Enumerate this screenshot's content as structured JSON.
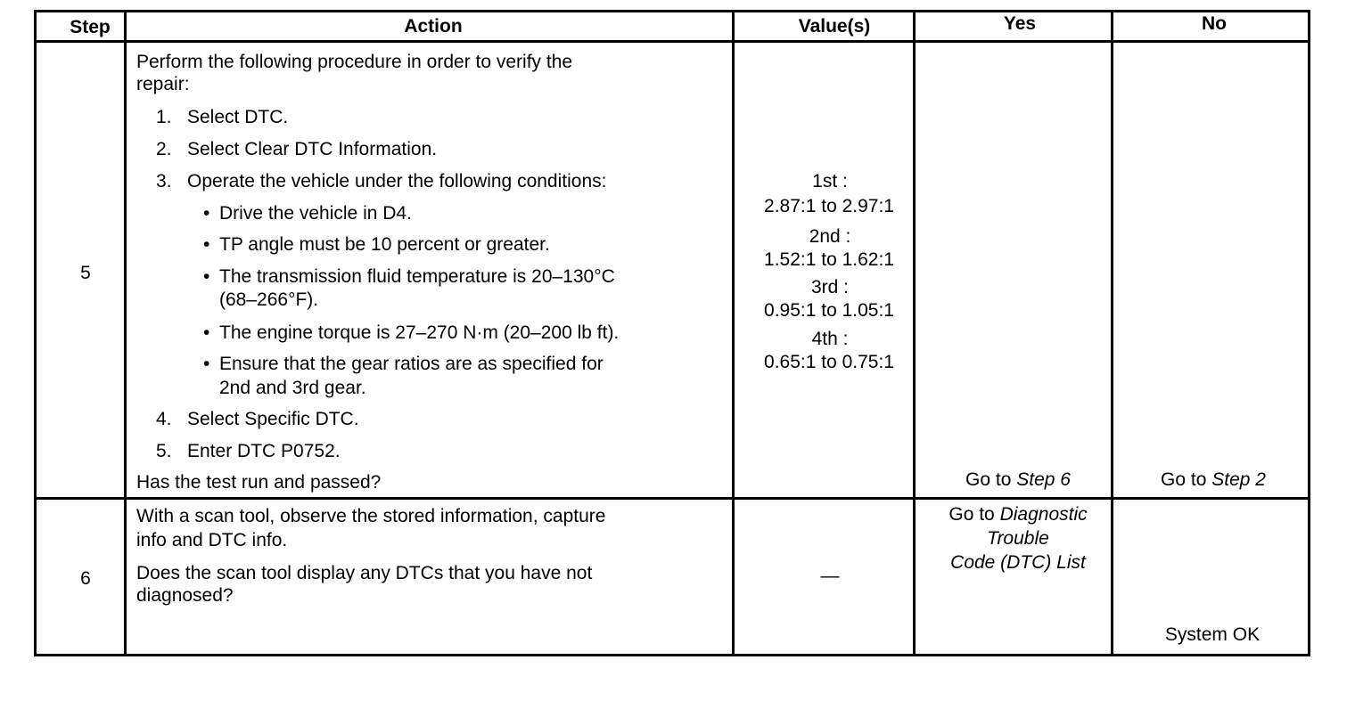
{
  "headers": {
    "step": "Step",
    "action": "Action",
    "values": "Value(s)",
    "yes": "Yes",
    "no": "No"
  },
  "row5": {
    "step": "5",
    "intro1": "Perform the following procedure in order to verify the",
    "intro2": "repair:",
    "items": [
      {
        "num": "1.",
        "text": "Select DTC."
      },
      {
        "num": "2.",
        "text": "Select Clear DTC Information."
      },
      {
        "num": "3.",
        "text": "Operate the vehicle under the following conditions:"
      },
      {
        "num": "4.",
        "text": "Select Specific DTC."
      },
      {
        "num": "5.",
        "text": "Enter DTC P0752."
      }
    ],
    "bullets": [
      "Drive the vehicle in D4.",
      "TP angle must be 10 percent or greater.",
      "The transmission fluid temperature is 20–130°C",
      "(68–266°F).",
      "The engine torque is 27–270 N·m (20–200 lb ft).",
      "Ensure that the gear ratios are as specified for",
      "2nd and 3rd  gear."
    ],
    "question": "Has the test run and passed?",
    "values": [
      {
        "gear": "1st :",
        "range": "2.87:1 to 2.97:1"
      },
      {
        "gear": "2nd :",
        "range": "1.52:1 to 1.62:1"
      },
      {
        "gear": "3rd :",
        "range": "0.95:1 to 1.05:1"
      },
      {
        "gear": "4th :",
        "range": "0.65:1 to 0.75:1"
      }
    ],
    "yes_prefix": "Go to",
    "yes_link": "Step 6",
    "no_prefix": "Go to",
    "no_link": "Step 2"
  },
  "row6": {
    "step": "6",
    "line1": "With a scan tool, observe the stored information, capture",
    "line2": "info and DTC info.",
    "line3": "Does the scan tool display any DTCs that you have not",
    "line4": "diagnosed?",
    "value": "—",
    "yes_prefix": "Go to",
    "yes_link1": "Diagnostic",
    "yes_link2": "Trouble",
    "yes_link3": "Code (DTC) List",
    "no": "System OK"
  }
}
